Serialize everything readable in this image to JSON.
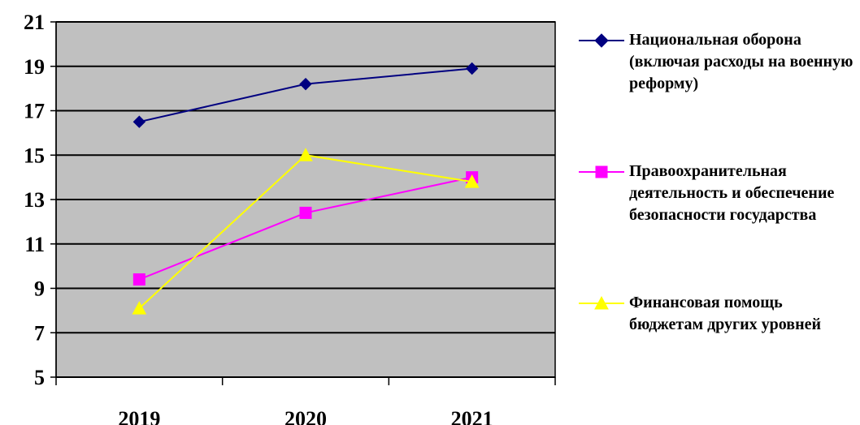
{
  "chart_data": {
    "type": "line",
    "categories": [
      "2019",
      "2020",
      "2021"
    ],
    "ylim": [
      5,
      21
    ],
    "yticks": [
      5,
      7,
      9,
      11,
      13,
      15,
      17,
      19,
      21
    ],
    "grid": true,
    "plot_background": "#c0c0c0",
    "legend_position": "right",
    "series": [
      {
        "name": "Национальная оборона (включая расходы на военную реформу)",
        "values": [
          16.5,
          18.2,
          18.9
        ],
        "color": "#000080",
        "marker": "diamond"
      },
      {
        "name": "Правоохранительная деятельность и обеспечение безопасности государства",
        "values": [
          9.4,
          12.4,
          14.0
        ],
        "color": "#ff00ff",
        "marker": "square"
      },
      {
        "name": "Финансовая помощь бюджетам других уровней",
        "values": [
          8.1,
          15.0,
          13.8
        ],
        "color": "#ffff00",
        "marker": "triangle"
      }
    ]
  }
}
